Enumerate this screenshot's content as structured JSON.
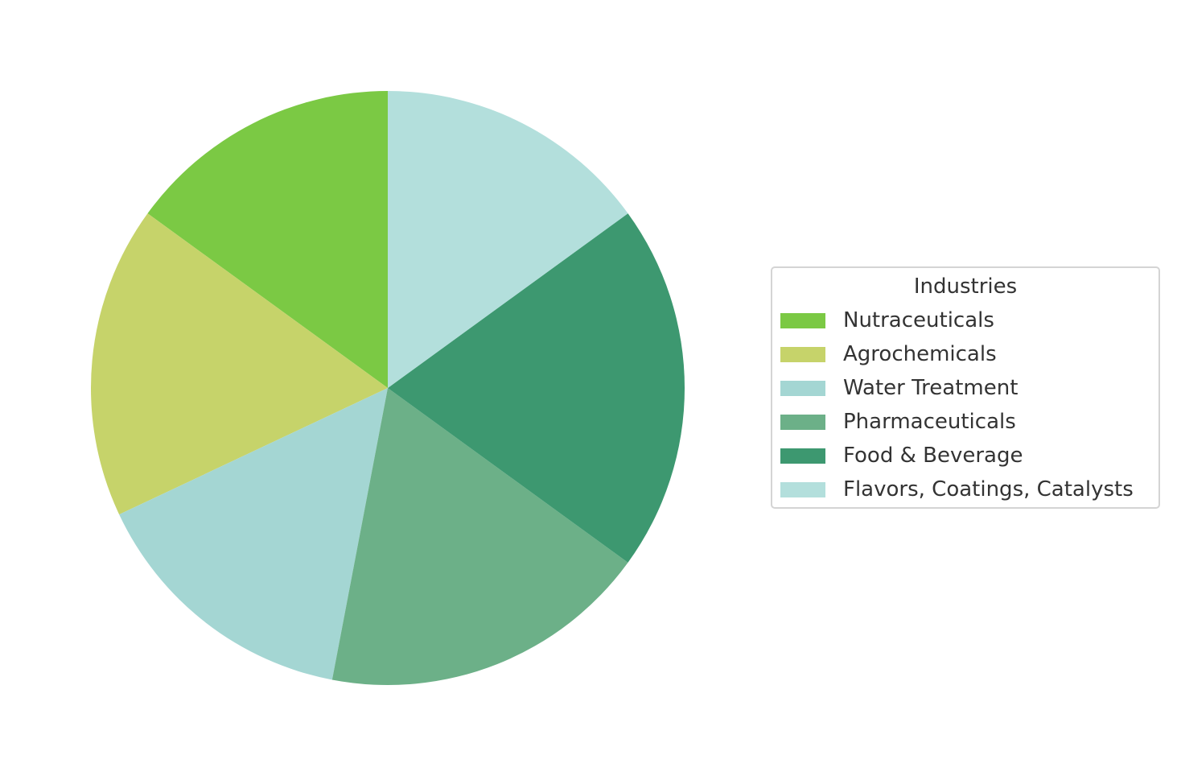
{
  "chart_data": {
    "type": "pie",
    "legend_title": "Industries",
    "legend_position": "right",
    "start_angle_deg": 90,
    "direction": "counterclockwise",
    "slices": [
      {
        "label": "Nutraceuticals",
        "value": 15,
        "color": "#7bc944"
      },
      {
        "label": "Agrochemicals",
        "value": 17,
        "color": "#c6d36a"
      },
      {
        "label": "Water Treatment",
        "value": 15,
        "color": "#a4d6d3"
      },
      {
        "label": "Pharmaceuticals",
        "value": 18,
        "color": "#6cb088"
      },
      {
        "label": "Food & Beverage",
        "value": 20,
        "color": "#3d9870"
      },
      {
        "label": "Flavors, Coatings, Catalysts",
        "value": 15,
        "color": "#b3dfdc"
      }
    ]
  }
}
